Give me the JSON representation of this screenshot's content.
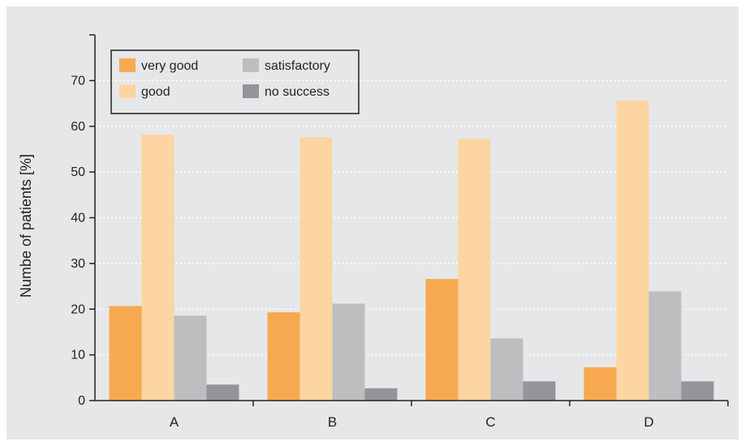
{
  "chart_data": {
    "type": "bar",
    "categories": [
      "A",
      "B",
      "C",
      "D"
    ],
    "series": [
      {
        "name": "very good",
        "color": "#f7a94f",
        "values": [
          20.7,
          19.3,
          26.6,
          7.3
        ]
      },
      {
        "name": "good",
        "color": "#fdd5a3",
        "values": [
          58.2,
          57.6,
          57.2,
          65.6
        ]
      },
      {
        "name": "satisfactory",
        "color": "#bcbec0",
        "values": [
          18.6,
          21.2,
          13.6,
          23.9
        ]
      },
      {
        "name": "no success",
        "color": "#939598",
        "values": [
          3.5,
          2.7,
          4.2,
          4.2
        ]
      }
    ],
    "title": "",
    "xlabel": "",
    "ylabel": "Numbe of patients [%]",
    "ylim": [
      0,
      80
    ],
    "yticks": [
      0,
      10,
      20,
      30,
      40,
      50,
      60,
      70
    ],
    "grid": true,
    "legend_position": "top-left"
  }
}
